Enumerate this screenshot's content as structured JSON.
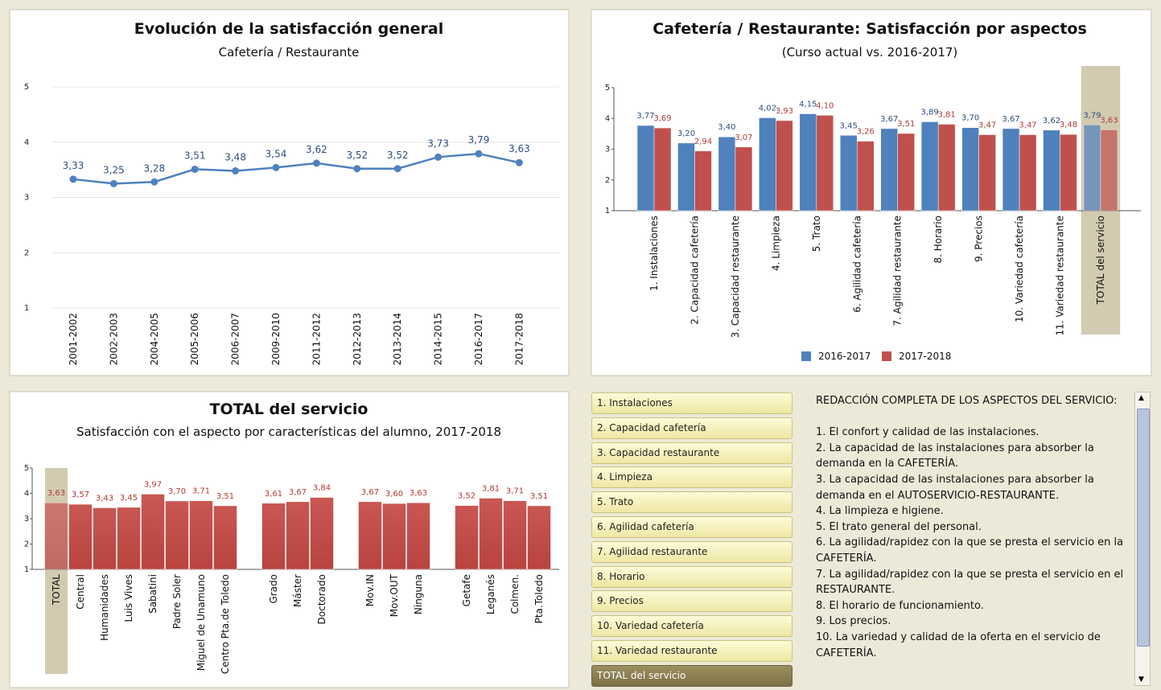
{
  "chart_data": [
    {
      "type": "line",
      "title": "Evolución de la satisfacción general",
      "subtitle": "Cafetería / Restaurante",
      "categories": [
        "2001-2002",
        "2002-2003",
        "2004-2005",
        "2005-2006",
        "2006-2007",
        "2009-2010",
        "2011-2012",
        "2012-2013",
        "2013-2014",
        "2014-2015",
        "2016-2017",
        "2017-2018"
      ],
      "values": [
        3.33,
        3.25,
        3.28,
        3.51,
        3.48,
        3.54,
        3.62,
        3.52,
        3.52,
        3.73,
        3.79,
        3.63
      ],
      "value_labels": [
        "3,33",
        "3,25",
        "3,28",
        "3,51",
        "3,48",
        "3,54",
        "3,62",
        "3,52",
        "3,52",
        "3,73",
        "3,79",
        "3,63"
      ],
      "color": "#4f81bd",
      "ylim": [
        1,
        5
      ],
      "yticks": [
        1,
        2,
        3,
        4,
        5
      ],
      "grid": true
    },
    {
      "type": "bar",
      "title": "Cafetería / Restaurante: Satisfacción por aspectos",
      "subtitle": "(Curso actual vs. 2016-2017)",
      "categories": [
        "1. Instalaciones",
        "2. Capacidad cafetería",
        "3. Capacidad restaurante",
        "4. Limpieza",
        "5. Trato",
        "6. Agilidad cafetería",
        "7. Agilidad restaurante",
        "8. Horario",
        "9. Precios",
        "10. Variedad cafetería",
        "11. Variedad restaurante",
        "TOTAL del servicio"
      ],
      "series": [
        {
          "name": "2016-2017",
          "color": "#4f81bd",
          "values": [
            3.77,
            3.2,
            3.4,
            4.02,
            4.15,
            3.45,
            3.67,
            3.89,
            3.7,
            3.67,
            3.62,
            3.79
          ],
          "value_labels": [
            "3,77",
            "3,20",
            "3,40",
            "4,02",
            "4,15",
            "3,45",
            "3,67",
            "3,89",
            "3,70",
            "3,67",
            "3,62",
            "3,79"
          ]
        },
        {
          "name": "2017-2018",
          "color": "#c0504d",
          "values": [
            3.69,
            2.94,
            3.07,
            3.93,
            4.1,
            3.26,
            3.51,
            3.81,
            3.47,
            3.47,
            3.48,
            3.63
          ],
          "value_labels": [
            "3,69",
            "2,94",
            "3,07",
            "3,93",
            "4,10",
            "3,26",
            "3,51",
            "3,81",
            "3,47",
            "3,47",
            "3,48",
            "3,63"
          ]
        }
      ],
      "ylim": [
        1,
        5
      ],
      "yticks": [
        1,
        2,
        3,
        4,
        5
      ],
      "grid": false,
      "legend": "bottom",
      "highlight": 11
    },
    {
      "type": "bar",
      "title": "TOTAL del servicio",
      "subtitle": "Satisfacción con el aspecto por características del alumno, 2017-2018",
      "categories": [
        "TOTAL",
        "Central",
        "Humanidades",
        "Luis Vives",
        "Sabatini",
        "Padre Soler",
        "Miguel de Unamuno",
        "Centro Pta.de Toledo",
        null,
        "Grado",
        "Máster",
        "Doctorado",
        null,
        "Mov.IN",
        "Mov.OUT",
        "Ninguna",
        null,
        "Getafe",
        "Leganés",
        "Colmen.",
        "Pta.Toledo"
      ],
      "values": [
        3.63,
        3.57,
        3.43,
        3.45,
        3.97,
        3.7,
        3.71,
        3.51,
        null,
        3.61,
        3.67,
        3.84,
        null,
        3.67,
        3.6,
        3.63,
        null,
        3.52,
        3.81,
        3.71,
        3.51
      ],
      "value_labels": [
        "3,63",
        "3,57",
        "3,43",
        "3,45",
        "3,97",
        "3,70",
        "3,71",
        "3,51",
        null,
        "3,61",
        "3,67",
        "3,84",
        null,
        "3,67",
        "3,60",
        "3,63",
        null,
        "3,52",
        "3,81",
        "3,71",
        "3,51"
      ],
      "color": "#c0504d",
      "ylim": [
        1,
        5
      ],
      "yticks": [
        1,
        2,
        3,
        4,
        5
      ],
      "grid": false,
      "highlight": 0
    }
  ],
  "selected_aspect": 11,
  "description": {
    "heading": "REDACCIÓN COMPLETA DE LOS ASPECTOS DEL SERVICIO:",
    "items": [
      "1. El confort y calidad de las instalaciones.",
      "2. La capacidad de las instalaciones para absorber la demanda en la CAFETERÍA.",
      "3. La capacidad de las instalaciones para absorber la demanda en el AUTOSERVICIO-RESTAURANTE.",
      "4. La limpieza e higiene.",
      "5. El trato general del personal.",
      "6. La agilidad/rapidez con la que se presta el servicio en la CAFETERÍA.",
      "7. La agilidad/rapidez con la que se presta el servicio en el RESTAURANTE.",
      "8. El horario de funcionamiento.",
      "9. Los precios.",
      "10. La variedad y calidad de la oferta en el servicio de CAFETERÍA."
    ]
  }
}
